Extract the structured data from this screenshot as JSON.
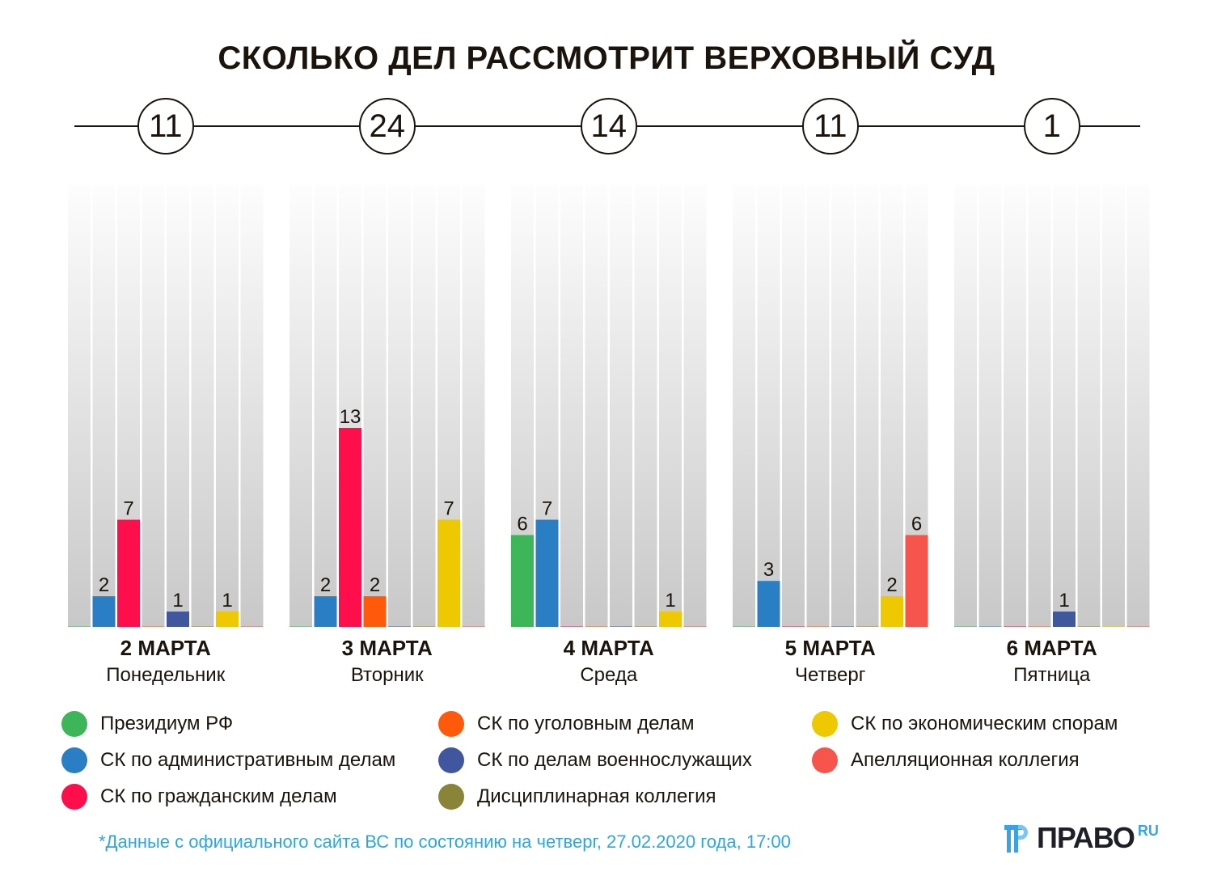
{
  "title": "СКОЛЬКО ДЕЛ РАССМОТРИТ ВЕРХОВНЫЙ СУД",
  "footnote": "*Данные с официального сайта ВС по состоянию на четверг, 27.02.2020 года, 17:00",
  "logo": {
    "text": "ПРАВО",
    "suffix": "RU",
    "icon": "pravo-logo-icon"
  },
  "colors": {
    "text": "#1a140c",
    "footnote": "#29a8e0",
    "column_bg_top": "#fdfdfd",
    "column_bg_bottom": "#c8c8c8"
  },
  "chart_data": {
    "type": "bar",
    "title": "СКОЛЬКО ДЕЛ РАССМОТРИТ ВЕРХОВНЫЙ СУД",
    "xlabel": "",
    "ylabel": "",
    "ylim": [
      0,
      29
    ],
    "grid": false,
    "legend_position": "bottom",
    "categories": [
      {
        "date": "2 МАРТА",
        "weekday": "Понедельник",
        "total": "11"
      },
      {
        "date": "3 МАРТА",
        "weekday": "Вторник",
        "total": "24"
      },
      {
        "date": "4 МАРТА",
        "weekday": "Среда",
        "total": "14"
      },
      {
        "date": "5 МАРТА",
        "weekday": "Четверг",
        "total": "11"
      },
      {
        "date": "6 МАРТА",
        "weekday": "Пятница",
        "total": "1"
      }
    ],
    "series": [
      {
        "name": "Президиум РФ",
        "color": "#3db65a",
        "values": [
          0,
          0,
          6,
          0,
          0
        ]
      },
      {
        "name": "СК по административным делам",
        "color": "#2a7fc4",
        "values": [
          2,
          2,
          7,
          3,
          0
        ]
      },
      {
        "name": "СК по гражданским делам",
        "color": "#fe0f4c",
        "values": [
          7,
          13,
          0,
          0,
          0
        ]
      },
      {
        "name": "СК по уголовным делам",
        "color": "#ff5a0a",
        "values": [
          0,
          2,
          0,
          0,
          0
        ]
      },
      {
        "name": "СК по делам военнослужащих",
        "color": "#41579d",
        "values": [
          1,
          0,
          0,
          0,
          1
        ]
      },
      {
        "name": "Дисциплинарная коллегия",
        "color": "#8a8438",
        "values": [
          0,
          0,
          0,
          0,
          0
        ]
      },
      {
        "name": "СК по экономическим спорам",
        "color": "#eec800",
        "values": [
          1,
          7,
          1,
          2,
          0
        ]
      },
      {
        "name": "Апелляционная коллегия",
        "color": "#f5554a",
        "values": [
          0,
          0,
          0,
          6,
          0
        ]
      }
    ]
  },
  "legend_order": [
    0,
    1,
    2,
    3,
    4,
    5,
    6,
    7
  ]
}
